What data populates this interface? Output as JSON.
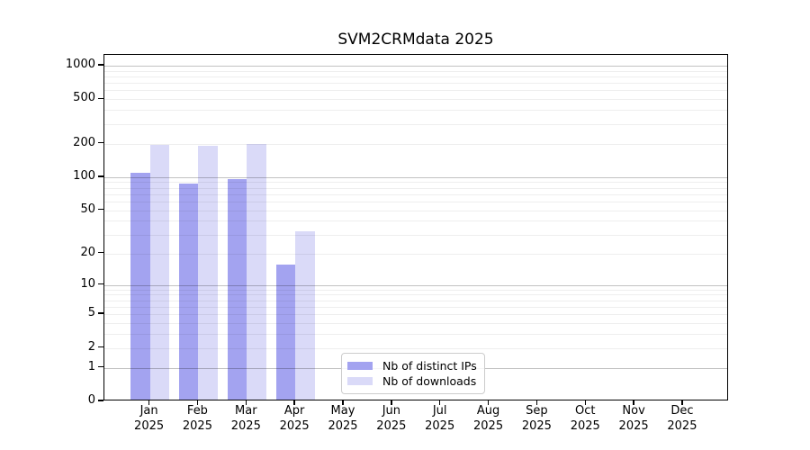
{
  "title": "SVM2CRMdata 2025",
  "chart_data": {
    "type": "bar",
    "title": "SVM2CRMdata 2025",
    "categories": [
      "Jan 2025",
      "Feb 2025",
      "Mar 2025",
      "Apr 2025",
      "May 2025",
      "Jun 2025",
      "Jul 2025",
      "Aug 2025",
      "Sep 2025",
      "Oct 2025",
      "Nov 2025",
      "Dec 2025"
    ],
    "month_labels": [
      "Jan",
      "Feb",
      "Mar",
      "Apr",
      "May",
      "Jun",
      "Jul",
      "Aug",
      "Sep",
      "Oct",
      "Nov",
      "Dec"
    ],
    "year_label": "2025",
    "series": [
      {
        "name": "Nb of distinct IPs",
        "color": "#a3a3f0",
        "values": [
          105,
          84,
          92,
          15,
          0,
          0,
          0,
          0,
          0,
          0,
          0,
          0
        ]
      },
      {
        "name": "Nb of downloads",
        "color": "#dadaf8",
        "values": [
          188,
          183,
          190,
          31,
          0,
          0,
          0,
          0,
          0,
          0,
          0,
          0
        ]
      }
    ],
    "y_ticks": [
      0,
      1,
      2,
      5,
      10,
      20,
      50,
      100,
      200,
      500,
      1000
    ],
    "y_scale": "log10(value+1)",
    "ylim": [
      0,
      1250
    ],
    "grid": true,
    "legend": {
      "position": "lower center"
    }
  },
  "colors": {
    "major_grid": "rgba(0,0,0,0.24)",
    "minor_grid": "rgba(0,0,0,0.065)",
    "spine": "#000000",
    "background": "#ffffff"
  }
}
